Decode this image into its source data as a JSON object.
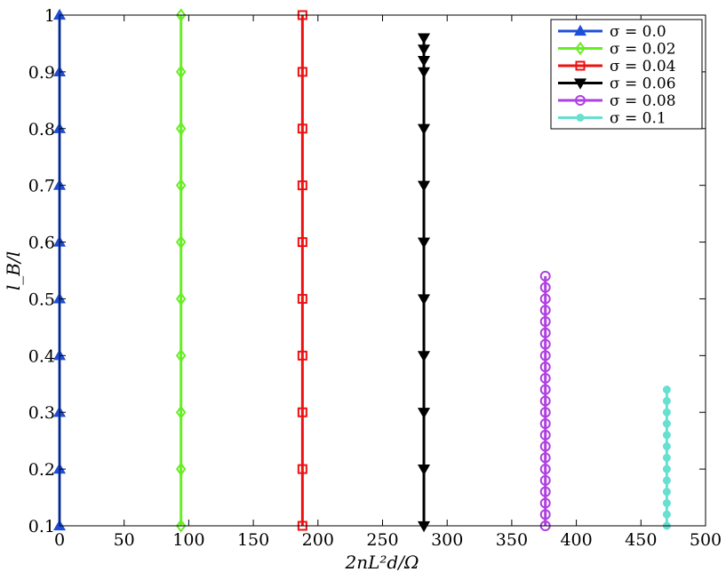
{
  "chart_data": {
    "type": "line",
    "title": "",
    "xlabel": "2nL²d/Ω",
    "ylabel": "l_B/l",
    "xlim": [
      0,
      500
    ],
    "ylim": [
      0.1,
      1.0
    ],
    "xticks": [
      0,
      50,
      100,
      150,
      200,
      250,
      300,
      350,
      400,
      450,
      500
    ],
    "yticks": [
      0.1,
      0.2,
      0.3,
      0.4,
      0.5,
      0.6,
      0.7,
      0.8,
      0.9,
      1.0
    ],
    "xtick_labels": [
      "0",
      "50",
      "100",
      "150",
      "200",
      "250",
      "300",
      "350",
      "400",
      "450",
      "500"
    ],
    "ytick_labels": [
      "0.1",
      "0.2",
      "0.3",
      "0.4",
      "0.5",
      "0.6",
      "0.7",
      "0.8",
      "0.9",
      "1"
    ],
    "grid": false,
    "legend_position": "top-right",
    "series": [
      {
        "name": "σ = 0.0",
        "color": "#1f4fd8",
        "marker": "triangle-up",
        "points": [
          [
            0,
            0.1
          ],
          [
            0,
            0.2
          ],
          [
            0,
            0.3
          ],
          [
            0,
            0.4
          ],
          [
            0,
            0.5
          ],
          [
            0,
            0.6
          ],
          [
            0,
            0.7
          ],
          [
            0,
            0.8
          ],
          [
            0,
            0.9
          ],
          [
            0,
            1.0
          ]
        ]
      },
      {
        "name": "σ = 0.02",
        "color": "#66ee22",
        "marker": "diamond",
        "points": [
          [
            94,
            0.1
          ],
          [
            94,
            0.2
          ],
          [
            94,
            0.3
          ],
          [
            94,
            0.4
          ],
          [
            94,
            0.5
          ],
          [
            94,
            0.6
          ],
          [
            94,
            0.7
          ],
          [
            94,
            0.8
          ],
          [
            94,
            0.9
          ],
          [
            94,
            1.0
          ]
        ]
      },
      {
        "name": "σ = 0.04",
        "color": "#ee1111",
        "marker": "square",
        "points": [
          [
            188,
            0.1
          ],
          [
            188,
            0.2
          ],
          [
            188,
            0.3
          ],
          [
            188,
            0.4
          ],
          [
            188,
            0.5
          ],
          [
            188,
            0.6
          ],
          [
            188,
            0.7
          ],
          [
            188,
            0.8
          ],
          [
            188,
            0.9
          ],
          [
            188,
            1.0
          ]
        ]
      },
      {
        "name": "σ = 0.06",
        "color": "#000000",
        "marker": "triangle-down",
        "points": [
          [
            282,
            0.1
          ],
          [
            282,
            0.2
          ],
          [
            282,
            0.3
          ],
          [
            282,
            0.4
          ],
          [
            282,
            0.5
          ],
          [
            282,
            0.6
          ],
          [
            282,
            0.7
          ],
          [
            282,
            0.8
          ],
          [
            282,
            0.9
          ],
          [
            282,
            0.92
          ],
          [
            282,
            0.94
          ],
          [
            282,
            0.96
          ]
        ]
      },
      {
        "name": "σ = 0.08",
        "color": "#b040e0",
        "marker": "circle",
        "points": [
          [
            376,
            0.1
          ],
          [
            376,
            0.12
          ],
          [
            376,
            0.14
          ],
          [
            376,
            0.16
          ],
          [
            376,
            0.18
          ],
          [
            376,
            0.2
          ],
          [
            376,
            0.22
          ],
          [
            376,
            0.24
          ],
          [
            376,
            0.26
          ],
          [
            376,
            0.28
          ],
          [
            376,
            0.3
          ],
          [
            376,
            0.32
          ],
          [
            376,
            0.34
          ],
          [
            376,
            0.36
          ],
          [
            376,
            0.38
          ],
          [
            376,
            0.4
          ],
          [
            376,
            0.42
          ],
          [
            376,
            0.44
          ],
          [
            376,
            0.46
          ],
          [
            376,
            0.48
          ],
          [
            376,
            0.5
          ],
          [
            376,
            0.52
          ],
          [
            376,
            0.54
          ]
        ]
      },
      {
        "name": "σ = 0.1",
        "color": "#66e0d0",
        "marker": "star",
        "points": [
          [
            470,
            0.1
          ],
          [
            470,
            0.12
          ],
          [
            470,
            0.14
          ],
          [
            470,
            0.16
          ],
          [
            470,
            0.18
          ],
          [
            470,
            0.2
          ],
          [
            470,
            0.22
          ],
          [
            470,
            0.24
          ],
          [
            470,
            0.26
          ],
          [
            470,
            0.28
          ],
          [
            470,
            0.3
          ],
          [
            470,
            0.32
          ],
          [
            470,
            0.34
          ]
        ]
      }
    ]
  }
}
